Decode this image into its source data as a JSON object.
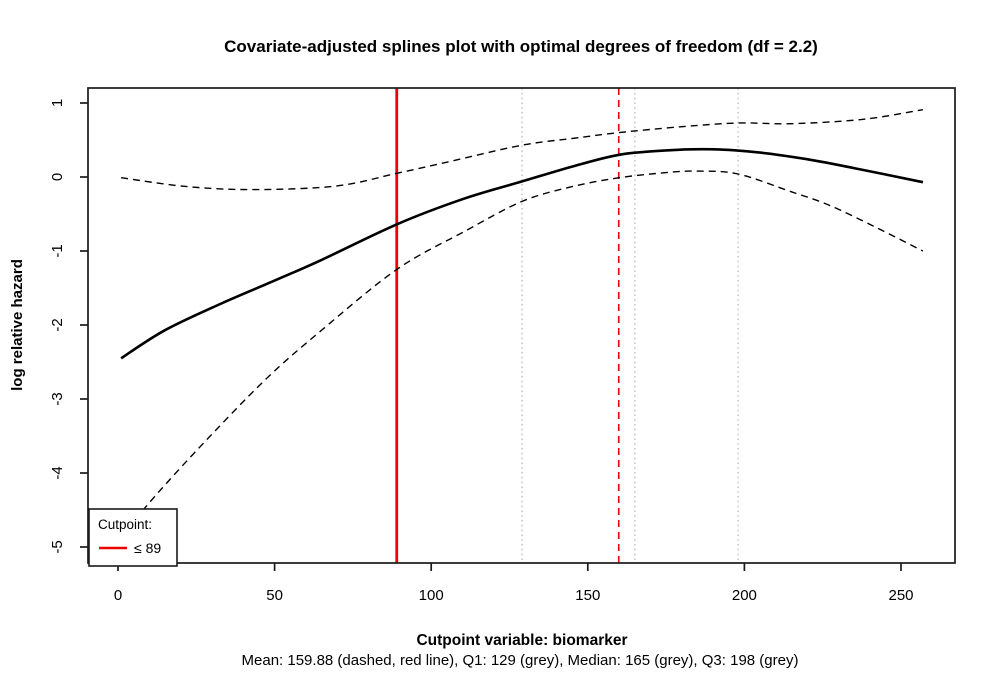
{
  "chart_data": {
    "type": "line",
    "title": "Covariate-adjusted splines plot with optimal degrees of freedom (df = 2.2)",
    "xlabel": "Cutpoint variable:  biomarker",
    "sublabel": "Mean: 159.88 (dashed, red line),  Q1: 129 (grey),  Median: 165 (grey),  Q3: 198 (grey)",
    "ylabel": "log relative hazard",
    "xlim": [
      -9.5,
      267
    ],
    "ylim": [
      -5.2,
      1.2
    ],
    "x_ticks": [
      0,
      50,
      100,
      150,
      200,
      250
    ],
    "y_ticks": [
      1,
      0,
      -1,
      -2,
      -3,
      -4,
      -5
    ],
    "grid": false,
    "legend_position": "bottom-left",
    "series": [
      {
        "name": "spline-fit",
        "style": "solid",
        "color": "#000000",
        "width": 2.6,
        "points": [
          [
            1,
            -2.45
          ],
          [
            15,
            -2.07
          ],
          [
            33,
            -1.71
          ],
          [
            50,
            -1.4
          ],
          [
            65,
            -1.12
          ],
          [
            89,
            -0.64
          ],
          [
            110,
            -0.3
          ],
          [
            129,
            -0.06
          ],
          [
            145,
            0.14
          ],
          [
            160,
            0.3
          ],
          [
            175,
            0.36
          ],
          [
            190,
            0.375
          ],
          [
            205,
            0.33
          ],
          [
            220,
            0.24
          ],
          [
            235,
            0.12
          ],
          [
            257,
            -0.07
          ]
        ]
      },
      {
        "name": "upper-confidence-band",
        "style": "dashed",
        "color": "#000000",
        "width": 1.4,
        "points": [
          [
            1,
            -0.01
          ],
          [
            22,
            -0.13
          ],
          [
            44,
            -0.17
          ],
          [
            70,
            -0.12
          ],
          [
            89,
            0.05
          ],
          [
            105,
            0.2
          ],
          [
            129,
            0.43
          ],
          [
            145,
            0.52
          ],
          [
            160,
            0.6
          ],
          [
            180,
            0.68
          ],
          [
            198,
            0.73
          ],
          [
            215,
            0.72
          ],
          [
            238,
            0.78
          ],
          [
            257,
            0.91
          ]
        ]
      },
      {
        "name": "lower-confidence-band",
        "style": "dashed",
        "color": "#000000",
        "width": 1.4,
        "points": [
          [
            1,
            -4.9
          ],
          [
            8,
            -4.5
          ],
          [
            25,
            -3.7
          ],
          [
            47,
            -2.74
          ],
          [
            65,
            -2.07
          ],
          [
            89,
            -1.25
          ],
          [
            110,
            -0.75
          ],
          [
            129,
            -0.33
          ],
          [
            145,
            -0.13
          ],
          [
            160,
            -0.01
          ],
          [
            175,
            0.06
          ],
          [
            185,
            0.08
          ],
          [
            198,
            0.04
          ],
          [
            215,
            -0.2
          ],
          [
            227,
            -0.38
          ],
          [
            242,
            -0.68
          ],
          [
            257,
            -1.0
          ]
        ]
      }
    ],
    "reference_lines": [
      {
        "name": "cutpoint-line",
        "x": 89,
        "style": "solid",
        "color": "#EE0000",
        "width": 2.8
      },
      {
        "name": "mean-line",
        "x": 159.88,
        "style": "dashed",
        "color": "#EE0000",
        "width": 1.6
      },
      {
        "name": "q1-line",
        "x": 129,
        "style": "dotted",
        "color": "#C3C3C3",
        "width": 1.4
      },
      {
        "name": "median-line",
        "x": 165,
        "style": "dotted",
        "color": "#C3C3C3",
        "width": 1.4
      },
      {
        "name": "q3-line",
        "x": 198,
        "style": "dotted",
        "color": "#C3C3C3",
        "width": 1.4
      }
    ],
    "legend": {
      "title": "Cutpoint:",
      "items": [
        {
          "label": "≤ 89",
          "color": "#EE0000",
          "style": "solid"
        }
      ]
    }
  },
  "colors": {
    "red": "#EE0000",
    "grey": "#C3C3C3",
    "black": "#000000",
    "box": "#1A1A1A"
  }
}
